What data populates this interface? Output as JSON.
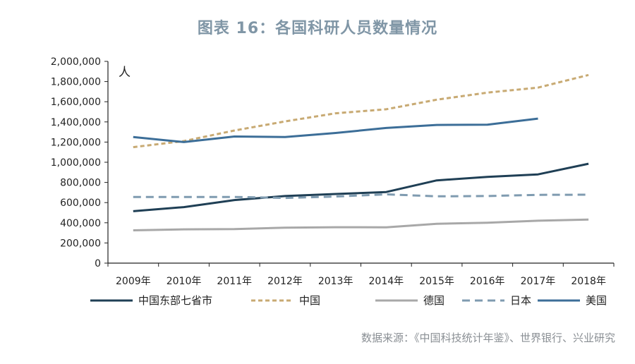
{
  "chart_data": {
    "type": "line",
    "title": "图表 16：各国科研人员数量情况",
    "unit_label": "人",
    "categories": [
      "2009年",
      "2010年",
      "2011年",
      "2012年",
      "2013年",
      "2014年",
      "2015年",
      "2016年",
      "2017年",
      "2018年"
    ],
    "ylim": [
      0,
      2000000
    ],
    "yticks": [
      0,
      200000,
      400000,
      600000,
      800000,
      1000000,
      1200000,
      1400000,
      1600000,
      1800000,
      2000000
    ],
    "ytick_labels": [
      "0",
      "200,000",
      "400,000",
      "600,000",
      "800,000",
      "1,000,000",
      "1,200,000",
      "1,400,000",
      "1,600,000",
      "1,800,000",
      "2,000,000"
    ],
    "grid": false,
    "legend_position": "bottom",
    "series": [
      {
        "name": "中国东部七省市",
        "color": "#1f3f55",
        "dash": "solid",
        "values": [
          515000,
          555000,
          625000,
          665000,
          685000,
          705000,
          820000,
          855000,
          880000,
          985000
        ]
      },
      {
        "name": "中国",
        "color": "#c8aa73",
        "dash": "dashed",
        "values": [
          1150000,
          1210000,
          1315000,
          1405000,
          1485000,
          1525000,
          1620000,
          1690000,
          1740000,
          1865000
        ]
      },
      {
        "name": "德国",
        "color": "#a8a8a8",
        "dash": "solid",
        "values": [
          325000,
          335000,
          338000,
          352000,
          356000,
          355000,
          390000,
          400000,
          420000,
          432000
        ]
      },
      {
        "name": "日本",
        "color": "#7f9bb0",
        "dash": "dashed",
        "values": [
          655000,
          655000,
          656000,
          646000,
          660000,
          682000,
          662000,
          665000,
          677000,
          678000
        ]
      },
      {
        "name": "美国",
        "color": "#3c6e98",
        "dash": "solid",
        "values": [
          1250000,
          1200000,
          1255000,
          1250000,
          1290000,
          1340000,
          1370000,
          1372000,
          1433000,
          null
        ]
      }
    ]
  },
  "source_text": "数据来源：《中国科技统计年鉴》、世界银行、兴业研究"
}
